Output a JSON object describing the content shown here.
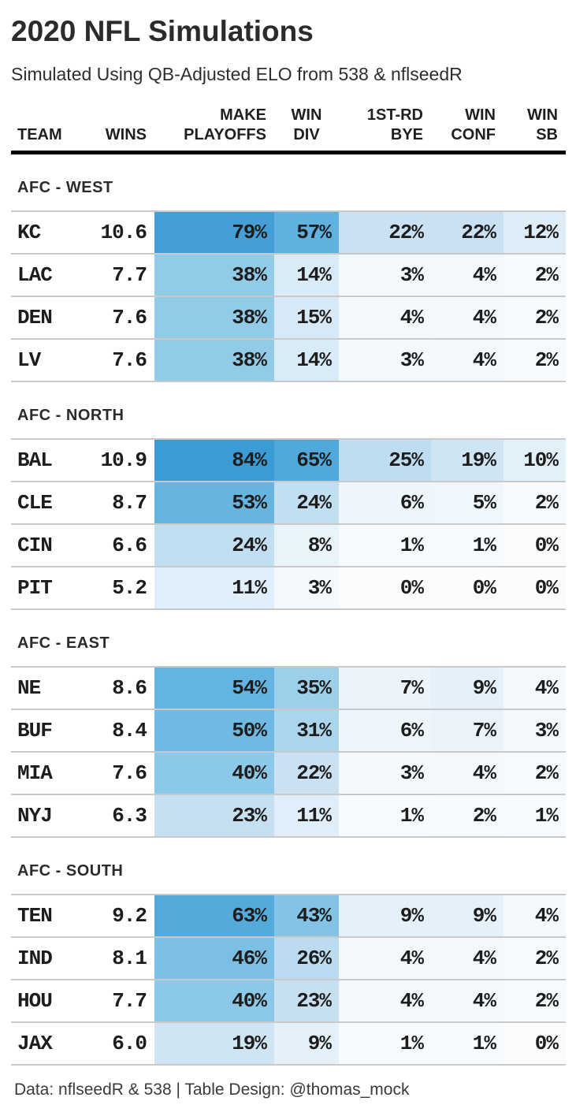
{
  "chart_data": {
    "type": "table",
    "title": "2020 NFL Simulations",
    "subtitle": "Simulated Using QB-Adjusted ELO from 538 & nflseedR",
    "unit": "%",
    "columns": [
      {
        "id": "team",
        "header": [
          "",
          "TEAM"
        ],
        "align": "left",
        "header_align": "left",
        "heat": false
      },
      {
        "id": "wins",
        "header": [
          "",
          "WINS"
        ],
        "align": "right",
        "header_align": "right",
        "heat": false
      },
      {
        "id": "make_playoffs",
        "header": [
          "MAKE",
          "PLAYOFFS"
        ],
        "align": "right",
        "header_align": "right",
        "heat": true
      },
      {
        "id": "win_div",
        "header": [
          "WIN",
          "DIV"
        ],
        "align": "right",
        "header_align": "center",
        "heat": true
      },
      {
        "id": "first_rd_bye",
        "header": [
          "1ST-RD",
          "BYE"
        ],
        "align": "right",
        "header_align": "right",
        "heat": true
      },
      {
        "id": "win_conf",
        "header": [
          "WIN",
          "CONF"
        ],
        "align": "right",
        "header_align": "right",
        "heat": true
      },
      {
        "id": "win_sb",
        "header": [
          "WIN",
          "SB"
        ],
        "align": "right",
        "header_align": "right",
        "heat": true
      }
    ],
    "sections": [
      {
        "label": "AFC - WEST",
        "rows": [
          {
            "team": "KC",
            "wins": "10.6",
            "make_playoffs": 79,
            "win_div": 57,
            "first_rd_bye": 22,
            "win_conf": 22,
            "win_sb": 12
          },
          {
            "team": "LAC",
            "wins": "7.7",
            "make_playoffs": 38,
            "win_div": 14,
            "first_rd_bye": 3,
            "win_conf": 4,
            "win_sb": 2
          },
          {
            "team": "DEN",
            "wins": "7.6",
            "make_playoffs": 38,
            "win_div": 15,
            "first_rd_bye": 4,
            "win_conf": 4,
            "win_sb": 2
          },
          {
            "team": "LV",
            "wins": "7.6",
            "make_playoffs": 38,
            "win_div": 14,
            "first_rd_bye": 3,
            "win_conf": 4,
            "win_sb": 2
          }
        ]
      },
      {
        "label": "AFC - NORTH",
        "rows": [
          {
            "team": "BAL",
            "wins": "10.9",
            "make_playoffs": 84,
            "win_div": 65,
            "first_rd_bye": 25,
            "win_conf": 19,
            "win_sb": 10
          },
          {
            "team": "CLE",
            "wins": "8.7",
            "make_playoffs": 53,
            "win_div": 24,
            "first_rd_bye": 6,
            "win_conf": 5,
            "win_sb": 2
          },
          {
            "team": "CIN",
            "wins": "6.6",
            "make_playoffs": 24,
            "win_div": 8,
            "first_rd_bye": 1,
            "win_conf": 1,
            "win_sb": 0
          },
          {
            "team": "PIT",
            "wins": "5.2",
            "make_playoffs": 11,
            "win_div": 3,
            "first_rd_bye": 0,
            "win_conf": 0,
            "win_sb": 0
          }
        ]
      },
      {
        "label": "AFC - EAST",
        "rows": [
          {
            "team": "NE",
            "wins": "8.6",
            "make_playoffs": 54,
            "win_div": 35,
            "first_rd_bye": 7,
            "win_conf": 9,
            "win_sb": 4
          },
          {
            "team": "BUF",
            "wins": "8.4",
            "make_playoffs": 50,
            "win_div": 31,
            "first_rd_bye": 6,
            "win_conf": 7,
            "win_sb": 3
          },
          {
            "team": "MIA",
            "wins": "7.6",
            "make_playoffs": 40,
            "win_div": 22,
            "first_rd_bye": 3,
            "win_conf": 4,
            "win_sb": 2
          },
          {
            "team": "NYJ",
            "wins": "6.3",
            "make_playoffs": 23,
            "win_div": 11,
            "first_rd_bye": 1,
            "win_conf": 2,
            "win_sb": 1
          }
        ]
      },
      {
        "label": "AFC - SOUTH",
        "rows": [
          {
            "team": "TEN",
            "wins": "9.2",
            "make_playoffs": 63,
            "win_div": 43,
            "first_rd_bye": 9,
            "win_conf": 9,
            "win_sb": 4
          },
          {
            "team": "IND",
            "wins": "8.1",
            "make_playoffs": 46,
            "win_div": 26,
            "first_rd_bye": 4,
            "win_conf": 4,
            "win_sb": 2
          },
          {
            "team": "HOU",
            "wins": "7.7",
            "make_playoffs": 40,
            "win_div": 23,
            "first_rd_bye": 4,
            "win_conf": 4,
            "win_sb": 2
          },
          {
            "team": "JAX",
            "wins": "6.0",
            "make_playoffs": 19,
            "win_div": 9,
            "first_rd_bye": 1,
            "win_conf": 1,
            "win_sb": 0
          }
        ]
      }
    ],
    "footer": "Data: nflseedR & 538 | Table Design: @thomas_mock",
    "heat_scale": [
      {
        "v": 0,
        "c": "#fafcfe"
      },
      {
        "v": 5,
        "c": "#f0f7fc"
      },
      {
        "v": 12,
        "c": "#ddedf8"
      },
      {
        "v": 22,
        "c": "#c9e1f2"
      },
      {
        "v": 38,
        "c": "#92cbe8"
      },
      {
        "v": 53,
        "c": "#66b5e1"
      },
      {
        "v": 65,
        "c": "#51a8db"
      },
      {
        "v": 79,
        "c": "#459fd6"
      },
      {
        "v": 84,
        "c": "#3a9bd5"
      },
      {
        "v": 100,
        "c": "#288ccd"
      }
    ],
    "colors": {
      "header_bar": "#000000",
      "rule_gray": "#c9c9c9",
      "text_dark": "#1d1d1d",
      "background": "#ffffff"
    },
    "grid": "horizontal-rules",
    "legend_position": "none"
  }
}
